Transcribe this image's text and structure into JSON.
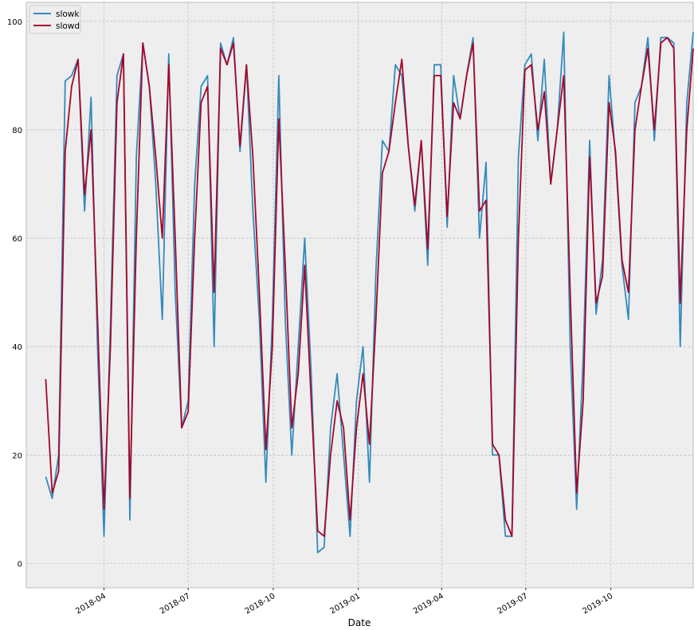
{
  "chart_data": {
    "type": "line",
    "title": "",
    "xlabel": "Date",
    "ylabel": "",
    "ylim": [
      -4.5,
      103.5
    ],
    "xlim": [
      "2018-01-07",
      "2019-12-29"
    ],
    "grid": true,
    "legend_placement": "top-left",
    "background": "#eeeeee",
    "yticks": [
      0,
      20,
      40,
      60,
      80,
      100
    ],
    "xticks": [
      "2018-04",
      "2018-07",
      "2018-10",
      "2019-01",
      "2019-04",
      "2019-07",
      "2019-10"
    ],
    "x": [
      "2018-01-28",
      "2018-02-04",
      "2018-02-11",
      "2018-02-18",
      "2018-02-25",
      "2018-03-04",
      "2018-03-11",
      "2018-03-18",
      "2018-03-25",
      "2018-04-01",
      "2018-04-08",
      "2018-04-15",
      "2018-04-22",
      "2018-04-29",
      "2018-05-06",
      "2018-05-13",
      "2018-05-20",
      "2018-05-27",
      "2018-06-03",
      "2018-06-10",
      "2018-06-17",
      "2018-06-24",
      "2018-07-01",
      "2018-07-08",
      "2018-07-15",
      "2018-07-22",
      "2018-07-29",
      "2018-08-05",
      "2018-08-12",
      "2018-08-19",
      "2018-08-26",
      "2018-09-02",
      "2018-09-09",
      "2018-09-16",
      "2018-09-23",
      "2018-09-30",
      "2018-10-07",
      "2018-10-14",
      "2018-10-21",
      "2018-10-28",
      "2018-11-04",
      "2018-11-11",
      "2018-11-18",
      "2018-11-25",
      "2018-12-02",
      "2018-12-09",
      "2018-12-16",
      "2018-12-23",
      "2018-12-30",
      "2019-01-06",
      "2019-01-13",
      "2019-01-20",
      "2019-01-27",
      "2019-02-03",
      "2019-02-10",
      "2019-02-17",
      "2019-02-24",
      "2019-03-03",
      "2019-03-10",
      "2019-03-17",
      "2019-03-24",
      "2019-03-31",
      "2019-04-07",
      "2019-04-14",
      "2019-04-21",
      "2019-04-28",
      "2019-05-05",
      "2019-05-12",
      "2019-05-19",
      "2019-05-26",
      "2019-06-02",
      "2019-06-09",
      "2019-06-16",
      "2019-06-23",
      "2019-06-30",
      "2019-07-07",
      "2019-07-14",
      "2019-07-21",
      "2019-07-28",
      "2019-08-04",
      "2019-08-11",
      "2019-08-18",
      "2019-08-25",
      "2019-09-01",
      "2019-09-08",
      "2019-09-15",
      "2019-09-22",
      "2019-09-29",
      "2019-10-06",
      "2019-10-13",
      "2019-10-20",
      "2019-10-27",
      "2019-11-03",
      "2019-11-10",
      "2019-11-17",
      "2019-11-24",
      "2019-12-01",
      "2019-12-08",
      "2019-12-15",
      "2019-12-22",
      "2019-12-29"
    ],
    "series": [
      {
        "name": "slowk",
        "color": "#348ABD",
        "values": [
          16,
          12,
          20,
          89,
          90,
          93,
          65,
          86,
          40,
          5,
          44,
          90,
          94,
          8,
          75,
          96,
          88,
          70,
          45,
          94,
          50,
          25,
          30,
          70,
          88,
          90,
          40,
          96,
          92,
          97,
          76,
          92,
          65,
          45,
          15,
          45,
          90,
          45,
          20,
          40,
          60,
          35,
          2,
          3,
          25,
          35,
          20,
          5,
          30,
          40,
          15,
          54,
          78,
          76,
          92,
          90,
          77,
          65,
          78,
          55,
          92,
          92,
          62,
          90,
          82,
          90,
          97,
          60,
          74,
          20,
          20,
          5,
          5,
          75,
          92,
          94,
          78,
          93,
          70,
          80,
          98,
          40,
          10,
          38,
          78,
          46,
          56,
          90,
          75,
          55,
          45,
          85,
          88,
          97,
          78,
          97,
          97,
          96,
          40,
          85,
          98
        ]
      },
      {
        "name": "slowd",
        "color": "#A60628",
        "values": [
          34,
          13,
          17,
          76,
          88,
          93,
          68,
          80,
          45,
          10,
          40,
          85,
          94,
          12,
          60,
          96,
          88,
          75,
          60,
          92,
          60,
          25,
          28,
          60,
          85,
          88,
          50,
          95,
          92,
          96,
          77,
          92,
          75,
          50,
          21,
          40,
          82,
          55,
          25,
          35,
          55,
          30,
          6,
          5,
          20,
          30,
          25,
          8,
          25,
          35,
          22,
          45,
          72,
          76,
          85,
          93,
          77,
          66,
          78,
          58,
          90,
          90,
          64,
          85,
          82,
          90,
          96,
          65,
          67,
          22,
          20,
          8,
          5,
          60,
          91,
          92,
          80,
          87,
          70,
          80,
          90,
          50,
          13,
          30,
          75,
          48,
          53,
          85,
          76,
          56,
          50,
          80,
          88,
          95,
          80,
          96,
          97,
          95,
          48,
          80,
          95
        ]
      }
    ]
  }
}
